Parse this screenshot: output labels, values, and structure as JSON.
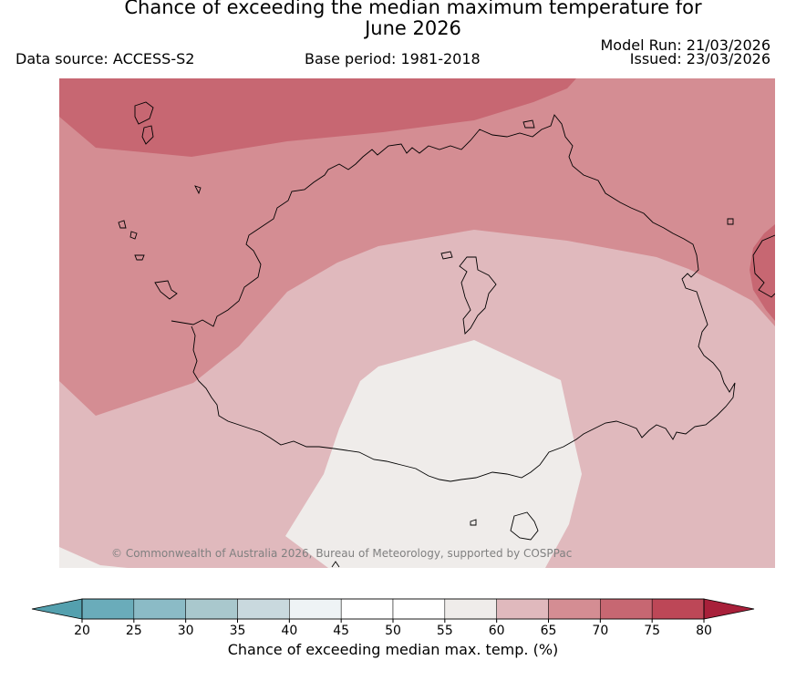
{
  "title_line1": "Chance of exceeding the median maximum temperature for",
  "title_line2": "June 2026",
  "data_source": "Data source: ACCESS-S2",
  "base_period": "Base period: 1981-2018",
  "model_run": "Model Run: 21/03/2026",
  "issued": "Issued: 23/03/2026",
  "credit": "© Commonwealth of Australia 2026, Bureau of Meteorology, supported by COSPPac",
  "colorbar": {
    "label": "Chance of exceeding median max. temp. (%)",
    "ticks": [
      "20",
      "25",
      "30",
      "35",
      "40",
      "45",
      "50",
      "55",
      "60",
      "65",
      "70",
      "75",
      "80"
    ],
    "colors": [
      "#6aacba",
      "#8bbbc6",
      "#a9c8cd",
      "#c9d9de",
      "#eef3f5",
      "#ffffff",
      "#ffffff",
      "#efecea",
      "#e0b9bd",
      "#d48d93",
      "#c76772",
      "#bd4757"
    ],
    "under_color": "#54a0ae",
    "over_color": "#a8203a"
  },
  "map_colors": {
    "c55_60": "#efecea",
    "c60_65": "#e0b9bd",
    "c65_70": "#d48d93",
    "c70_75": "#c76772",
    "coast": "#000000"
  }
}
